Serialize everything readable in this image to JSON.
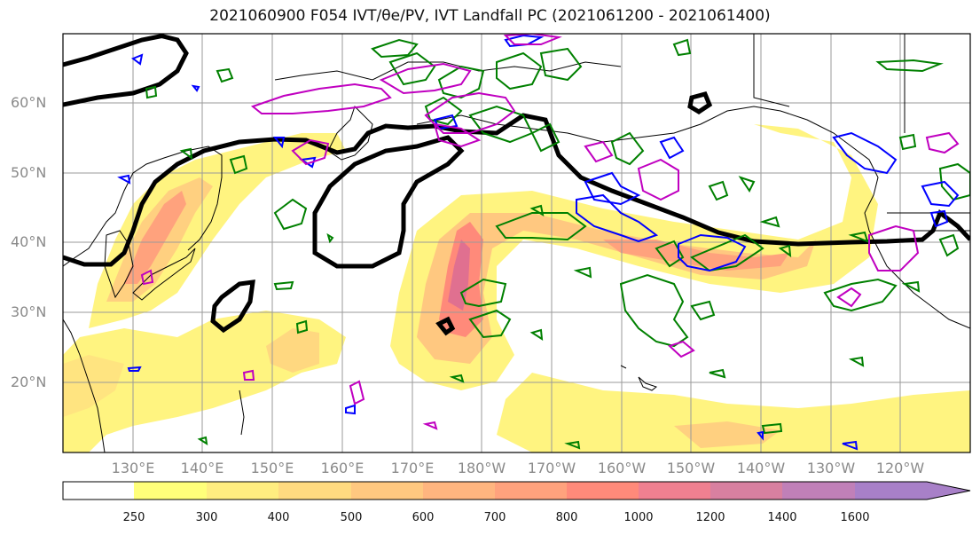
{
  "title": "2021060900 F054 IVT/θe/PV, IVT Landfall PC (2021061200 - 2021061400)",
  "latitude_labels": [
    "60°N",
    "50°N",
    "40°N",
    "30°N",
    "20°N"
  ],
  "longitude_labels": [
    "130°E",
    "140°E",
    "150°E",
    "160°E",
    "170°E",
    "180°W",
    "170°W",
    "160°W",
    "150°W",
    "140°W",
    "130°W",
    "120°W"
  ],
  "colorbar": {
    "levels": [
      "250",
      "300",
      "400",
      "500",
      "600",
      "700",
      "800",
      "1000",
      "1200",
      "1400",
      "1600"
    ],
    "colors": [
      "#ffff7a",
      "#ffed80",
      "#ffda80",
      "#ffc880",
      "#ffb57f",
      "#ffa27d",
      "#ff8a7a",
      "#f08090",
      "#d880a0",
      "#c080b8",
      "#a880c8"
    ],
    "extend": "max"
  },
  "overlay_colors": {
    "thick_contour": "#000000",
    "pv_contour_green": "#008000",
    "pv_contour_blue": "#0000ff",
    "pv_contour_magenta": "#c000c0"
  }
}
